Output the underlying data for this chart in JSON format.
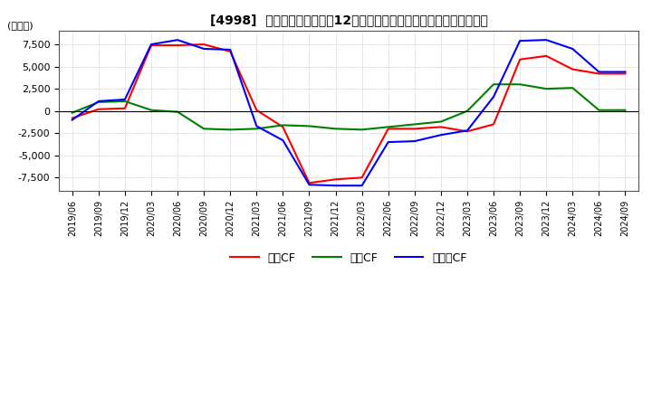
{
  "title": "[4998]  キャッシュフローの12か月移動合計の対前年同期増減額の推移",
  "ylabel": "(百万円)",
  "ylim": [
    -9000,
    9000
  ],
  "yticks": [
    -7500,
    -5000,
    -2500,
    0,
    2500,
    5000,
    7500
  ],
  "legend_labels": [
    "営業CF",
    "投資CF",
    "フリーCF"
  ],
  "line_colors": [
    "#ff0000",
    "#008000",
    "#0000ff"
  ],
  "x_labels": [
    "2019/06",
    "2019/09",
    "2019/12",
    "2020/03",
    "2020/06",
    "2020/09",
    "2020/12",
    "2021/03",
    "2021/06",
    "2021/09",
    "2021/12",
    "2022/03",
    "2022/06",
    "2022/09",
    "2022/12",
    "2023/03",
    "2023/06",
    "2023/09",
    "2023/12",
    "2024/03",
    "2024/06",
    "2024/09"
  ],
  "operating_cf": [
    -800,
    200,
    300,
    7400,
    7400,
    7500,
    6700,
    100,
    -1800,
    -8100,
    -7700,
    -7500,
    -2000,
    -2000,
    -1800,
    -2300,
    -1500,
    5800,
    6200,
    4700,
    4200,
    4200
  ],
  "investing_cf": [
    -200,
    1000,
    1100,
    100,
    -100,
    -2000,
    -2100,
    -2000,
    -1600,
    -1700,
    -2000,
    -2100,
    -1800,
    -1500,
    -1200,
    0,
    3000,
    3000,
    2500,
    2600,
    100,
    100
  ],
  "free_cf": [
    -1000,
    1100,
    1300,
    7500,
    8000,
    7000,
    6900,
    -1700,
    -3300,
    -8300,
    -8400,
    -8400,
    -3500,
    -3400,
    -2700,
    -2200,
    1600,
    7900,
    8000,
    7000,
    4400,
    4400
  ],
  "background_color": "#ffffff",
  "grid_color": "#aaaaaa",
  "grid_style": ":"
}
